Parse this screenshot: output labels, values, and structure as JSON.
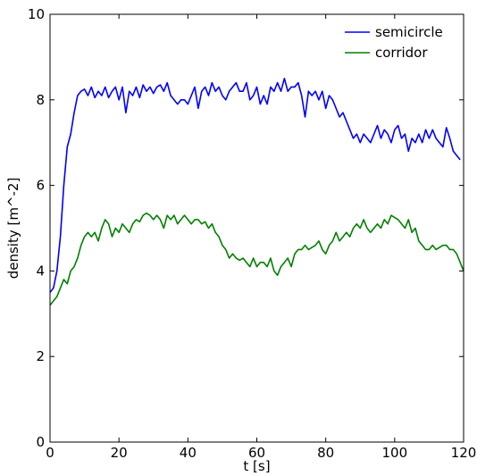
{
  "chart_data": {
    "type": "line",
    "xlabel": "t [s]",
    "ylabel": "density [m^-2]",
    "xlim": [
      0,
      120
    ],
    "ylim": [
      0,
      10
    ],
    "xticks": [
      0,
      20,
      40,
      60,
      80,
      100,
      120
    ],
    "yticks": [
      0,
      2,
      4,
      6,
      8,
      10
    ],
    "xtick_labels": [
      "0",
      "20",
      "40",
      "60",
      "80",
      "100",
      "120"
    ],
    "ytick_labels": [
      "0",
      "2",
      "4",
      "6",
      "8",
      "10"
    ],
    "grid": false,
    "legend_position": "top-right",
    "series": [
      {
        "name": "semicircle",
        "color": "#0000ff",
        "x": [
          0,
          1,
          2,
          3,
          4,
          5,
          6,
          7,
          8,
          9,
          10,
          11,
          12,
          13,
          14,
          15,
          16,
          17,
          18,
          19,
          20,
          21,
          22,
          23,
          24,
          25,
          26,
          27,
          28,
          29,
          30,
          31,
          32,
          33,
          34,
          35,
          36,
          37,
          38,
          39,
          40,
          41,
          42,
          43,
          44,
          45,
          46,
          47,
          48,
          49,
          50,
          51,
          52,
          53,
          54,
          55,
          56,
          57,
          58,
          59,
          60,
          61,
          62,
          63,
          64,
          65,
          66,
          67,
          68,
          69,
          70,
          71,
          72,
          73,
          74,
          75,
          76,
          77,
          78,
          79,
          80,
          81,
          82,
          83,
          84,
          85,
          86,
          87,
          88,
          89,
          90,
          91,
          92,
          93,
          94,
          95,
          96,
          97,
          98,
          99,
          100,
          101,
          102,
          103,
          104,
          105,
          106,
          107,
          108,
          109,
          110,
          111,
          112,
          113,
          114,
          115,
          116,
          117,
          118,
          119
        ],
        "y": [
          3.5,
          3.6,
          4.0,
          4.8,
          6.0,
          6.9,
          7.2,
          7.7,
          8.1,
          8.2,
          8.25,
          8.1,
          8.3,
          8.05,
          8.2,
          8.1,
          8.3,
          8.05,
          8.2,
          8.3,
          8.0,
          8.3,
          7.7,
          8.2,
          8.1,
          8.3,
          8.05,
          8.35,
          8.2,
          8.3,
          8.15,
          8.3,
          8.35,
          8.2,
          8.4,
          8.1,
          8.0,
          7.9,
          8.0,
          8.0,
          7.9,
          8.1,
          8.3,
          7.8,
          8.2,
          8.3,
          8.1,
          8.4,
          8.2,
          8.3,
          8.1,
          8.0,
          8.2,
          8.3,
          8.4,
          8.2,
          8.2,
          8.4,
          8.0,
          8.1,
          8.3,
          7.9,
          8.1,
          7.9,
          8.3,
          8.2,
          8.4,
          8.2,
          8.5,
          8.2,
          8.3,
          8.3,
          8.4,
          8.1,
          7.6,
          8.2,
          8.1,
          8.2,
          8.0,
          8.2,
          7.8,
          8.1,
          8.0,
          7.8,
          7.6,
          7.7,
          7.5,
          7.3,
          7.1,
          7.2,
          7.0,
          7.2,
          7.1,
          7.0,
          7.2,
          7.4,
          7.1,
          7.3,
          7.2,
          7.0,
          7.3,
          7.4,
          7.1,
          7.2,
          6.8,
          7.1,
          7.0,
          7.2,
          7.0,
          7.3,
          7.1,
          7.3,
          7.1,
          7.0,
          6.9,
          7.35,
          7.1,
          6.8,
          6.7,
          6.6
        ]
      },
      {
        "name": "corridor",
        "color": "#008000",
        "x": [
          0,
          1,
          2,
          3,
          4,
          5,
          6,
          7,
          8,
          9,
          10,
          11,
          12,
          13,
          14,
          15,
          16,
          17,
          18,
          19,
          20,
          21,
          22,
          23,
          24,
          25,
          26,
          27,
          28,
          29,
          30,
          31,
          32,
          33,
          34,
          35,
          36,
          37,
          38,
          39,
          40,
          41,
          42,
          43,
          44,
          45,
          46,
          47,
          48,
          49,
          50,
          51,
          52,
          53,
          54,
          55,
          56,
          57,
          58,
          59,
          60,
          61,
          62,
          63,
          64,
          65,
          66,
          67,
          68,
          69,
          70,
          71,
          72,
          73,
          74,
          75,
          76,
          77,
          78,
          79,
          80,
          81,
          82,
          83,
          84,
          85,
          86,
          87,
          88,
          89,
          90,
          91,
          92,
          93,
          94,
          95,
          96,
          97,
          98,
          99,
          100,
          101,
          102,
          103,
          104,
          105,
          106,
          107,
          108,
          109,
          110,
          111,
          112,
          113,
          114,
          115,
          116,
          117,
          118,
          119,
          120
        ],
        "y": [
          3.2,
          3.3,
          3.4,
          3.6,
          3.8,
          3.7,
          4.0,
          4.1,
          4.3,
          4.6,
          4.8,
          4.9,
          4.8,
          4.9,
          4.7,
          5.0,
          5.2,
          5.1,
          4.8,
          5.0,
          4.9,
          5.1,
          5.0,
          4.9,
          5.1,
          5.2,
          5.15,
          5.3,
          5.35,
          5.3,
          5.2,
          5.3,
          5.2,
          5.0,
          5.3,
          5.2,
          5.3,
          5.1,
          5.2,
          5.3,
          5.2,
          5.1,
          5.2,
          5.2,
          5.1,
          5.15,
          5.0,
          5.1,
          4.9,
          4.8,
          4.6,
          4.5,
          4.3,
          4.4,
          4.3,
          4.25,
          4.3,
          4.2,
          4.1,
          4.3,
          4.1,
          4.2,
          4.2,
          4.1,
          4.3,
          4.0,
          3.9,
          4.1,
          4.2,
          4.3,
          4.1,
          4.4,
          4.5,
          4.5,
          4.6,
          4.5,
          4.55,
          4.6,
          4.7,
          4.5,
          4.4,
          4.6,
          4.7,
          4.9,
          4.7,
          4.8,
          4.9,
          4.8,
          5.0,
          5.1,
          5.0,
          5.2,
          5.0,
          4.9,
          5.0,
          5.1,
          5.0,
          5.2,
          5.1,
          5.3,
          5.25,
          5.2,
          5.1,
          5.0,
          5.2,
          4.9,
          5.0,
          4.7,
          4.6,
          4.5,
          4.5,
          4.6,
          4.5,
          4.55,
          4.6,
          4.6,
          4.5,
          4.5,
          4.4,
          4.2,
          4.0
        ]
      }
    ]
  }
}
